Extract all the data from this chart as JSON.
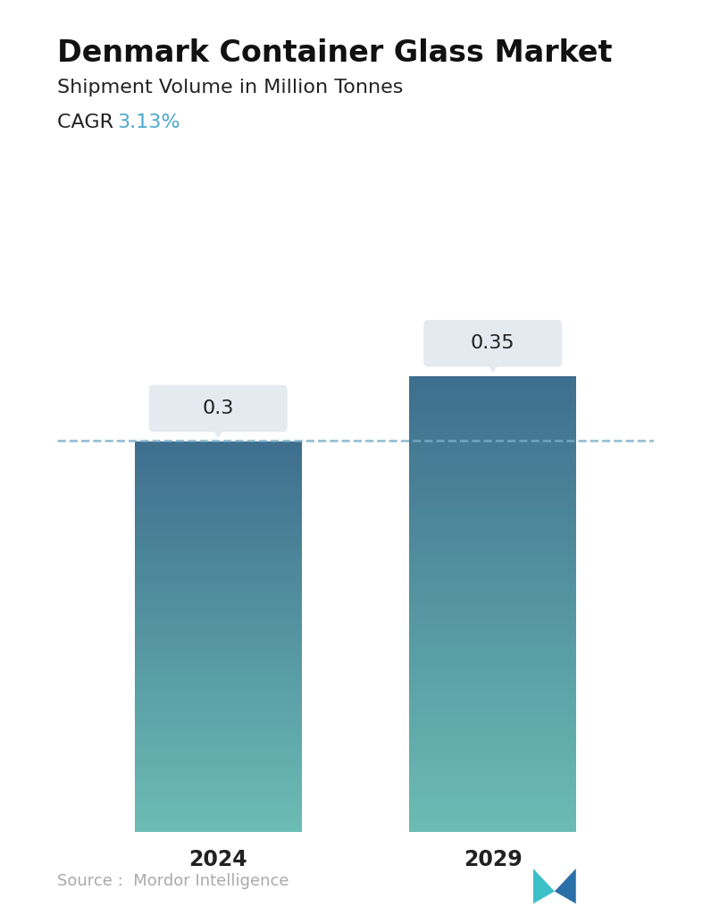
{
  "title": "Denmark Container Glass Market",
  "subtitle": "Shipment Volume in Million Tonnes",
  "cagr_label": "CAGR ",
  "cagr_value": "3.13%",
  "cagr_color": "#4BA8CC",
  "categories": [
    "2024",
    "2029"
  ],
  "values": [
    0.3,
    0.35
  ],
  "bar_color_top": "#3E6E8E",
  "bar_color_bottom": "#6BBCB4",
  "dashed_line_color": "#7AAEC8",
  "label_box_color": "#E4EAF0",
  "source_text": "Source :  Mordor Intelligence",
  "source_color": "#AAAAAA",
  "background_color": "#FFFFFF",
  "title_fontsize": 24,
  "subtitle_fontsize": 16,
  "cagr_fontsize": 16,
  "bar_label_fontsize": 16,
  "tick_fontsize": 17,
  "source_fontsize": 13,
  "bar_positions": [
    0.27,
    0.73
  ],
  "bar_width": 0.28,
  "ylim": [
    0,
    0.44
  ]
}
